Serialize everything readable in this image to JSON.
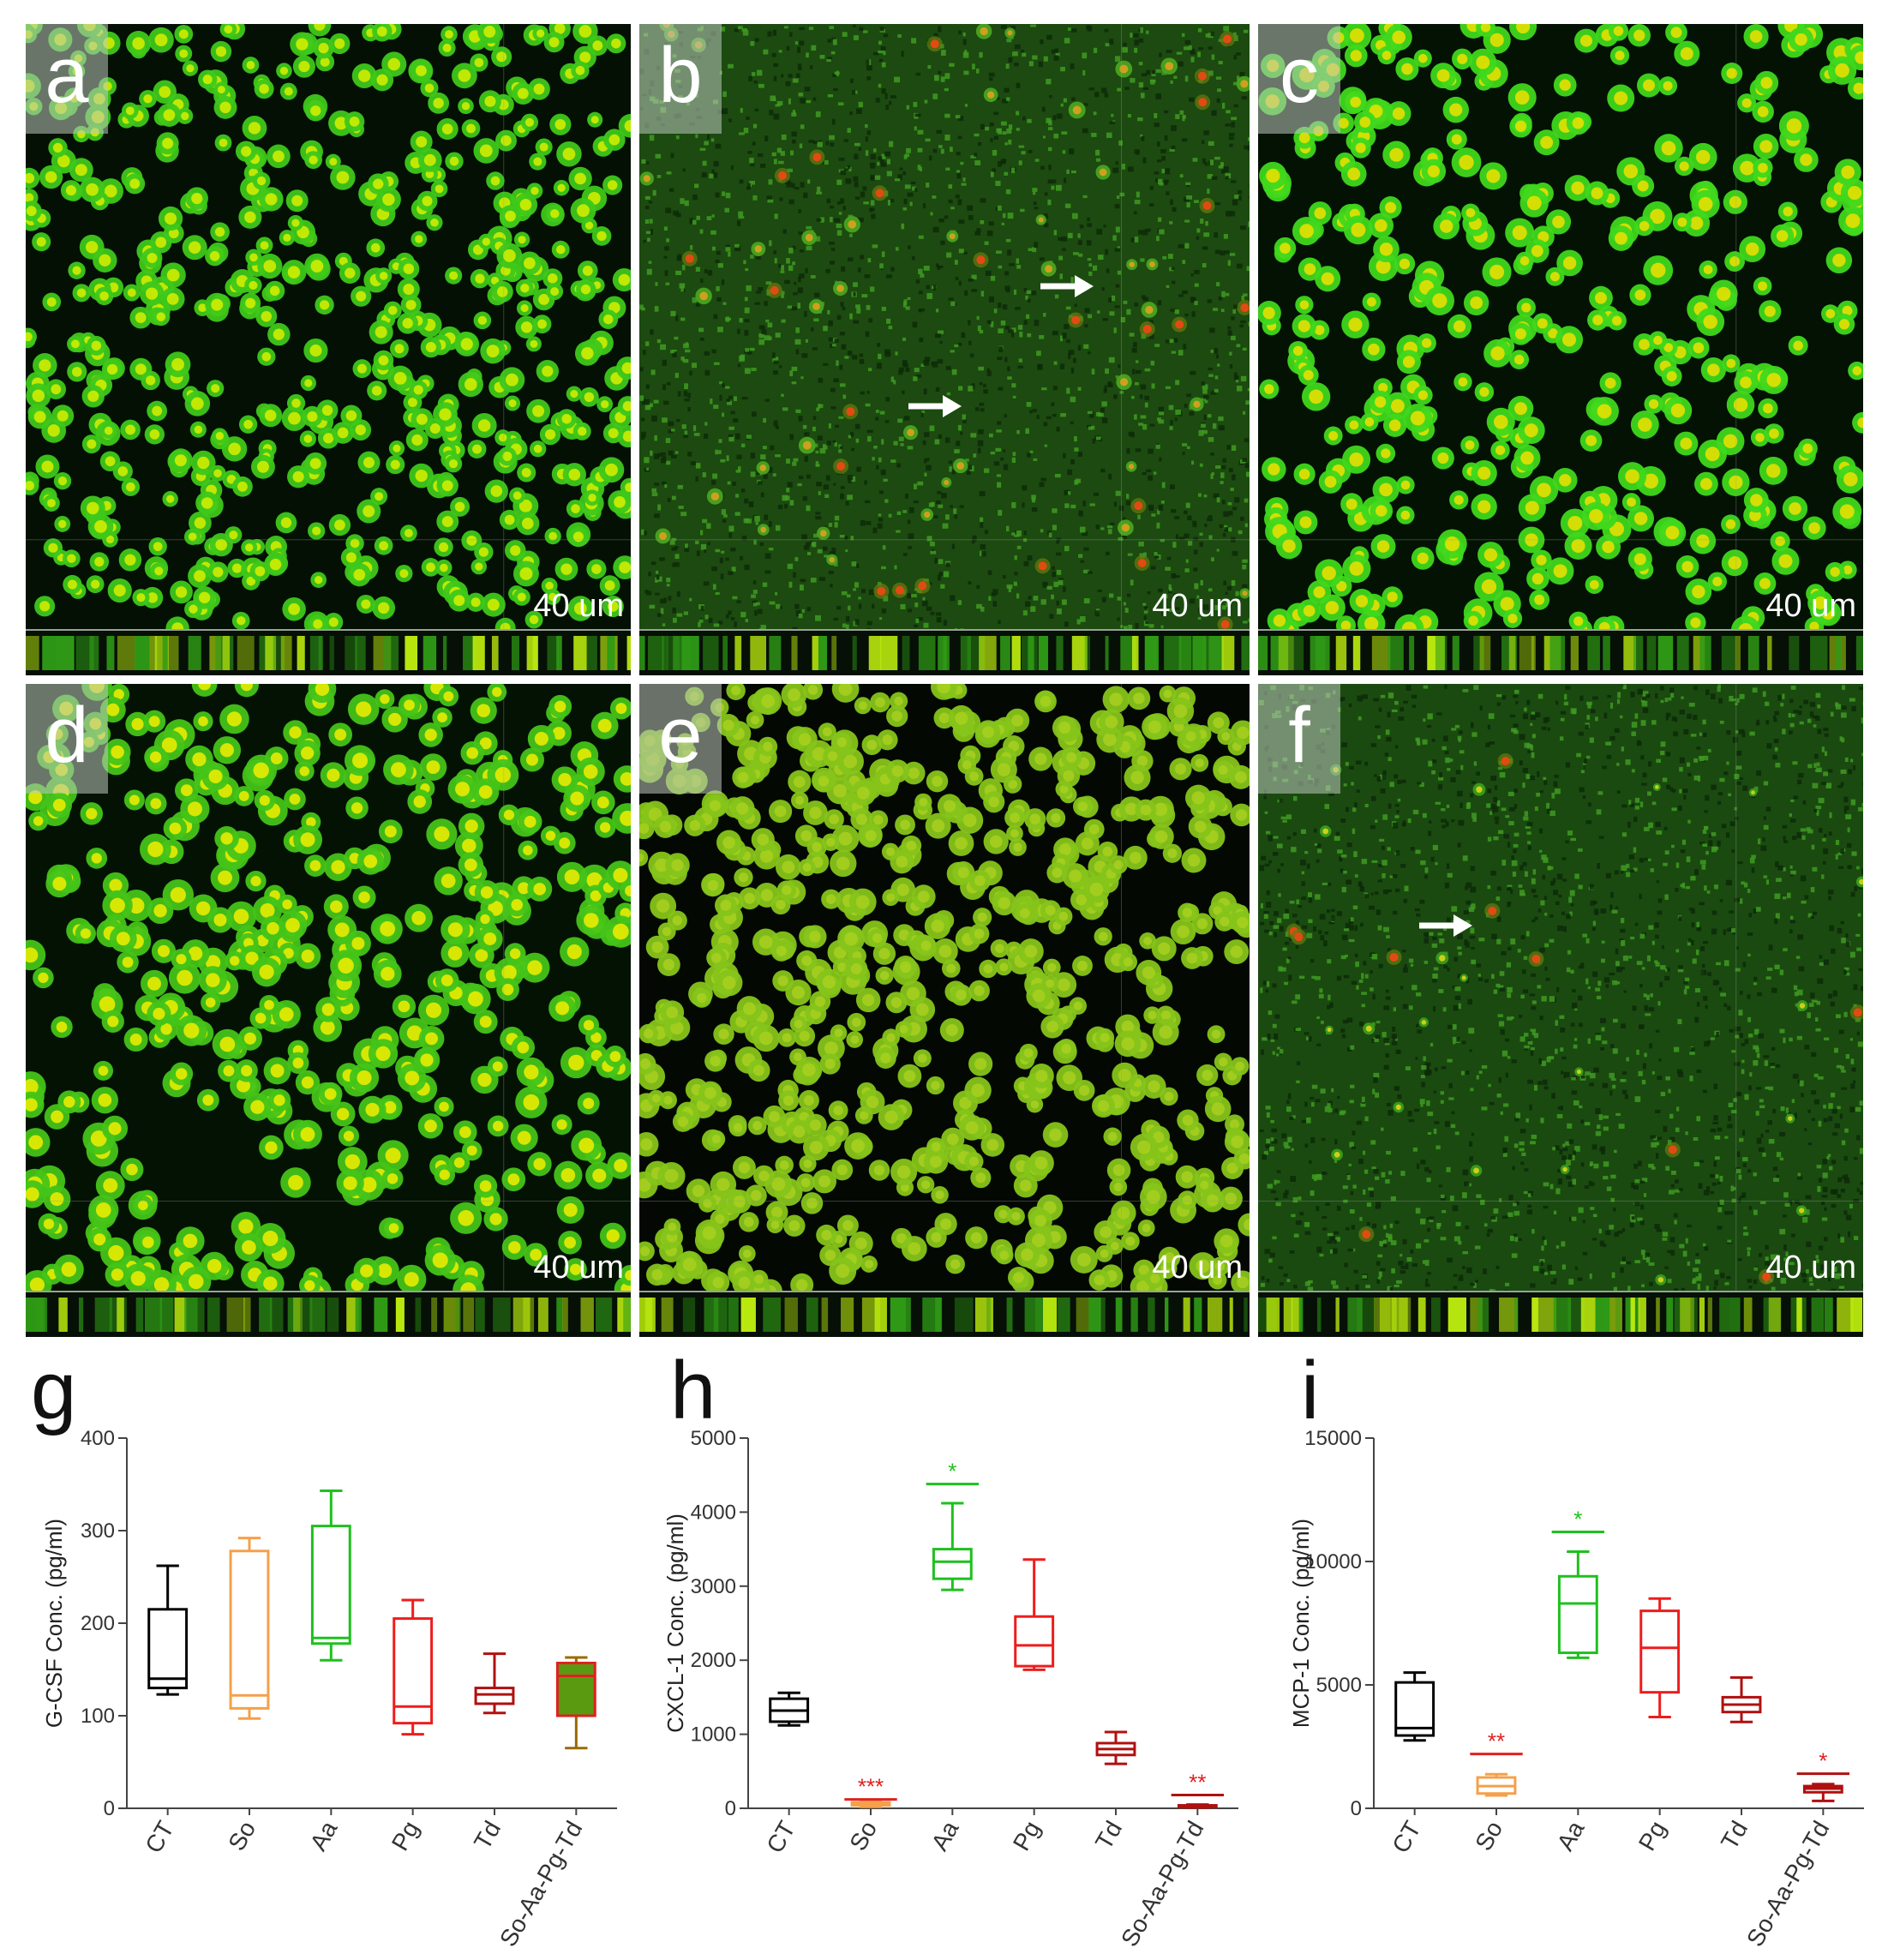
{
  "panels": [
    {
      "letter": "a",
      "scale": "40 um",
      "strip": true,
      "fill": "#3ec81a",
      "density": 560,
      "r": 12,
      "core": "#d9f000",
      "bg": "#031003",
      "red": 0,
      "arrows": 0
    },
    {
      "letter": "b",
      "scale": "40 um",
      "strip": true,
      "fill": "#4aa320",
      "density": 40,
      "r": 8,
      "core": "#e8a020",
      "bg": "#1c4a10",
      "red": 24,
      "arrows": 2
    },
    {
      "letter": "c",
      "scale": "40 um",
      "strip": true,
      "fill": "#3fd81c",
      "density": 380,
      "r": 14,
      "core": "#f0e000",
      "bg": "#031203",
      "red": 0,
      "arrows": 0
    },
    {
      "letter": "d",
      "scale": "40 um",
      "strip": true,
      "fill": "#44c418",
      "density": 420,
      "r": 15,
      "core": "#f2ef00",
      "bg": "#041204",
      "red": 0,
      "arrows": 0
    },
    {
      "letter": "e",
      "scale": "40 um",
      "strip": true,
      "fill": "#86c41a",
      "density": 640,
      "r": 13,
      "core": "#a8d020",
      "bg": "#030803",
      "red": 0,
      "arrows": 0
    },
    {
      "letter": "f",
      "scale": "40 um",
      "strip": true,
      "fill": "#3b9c1c",
      "density": 20,
      "r": 6,
      "core": "#e6d818",
      "bg": "#1a4a10",
      "red": 10,
      "arrows": 1
    }
  ],
  "chart_data": [
    {
      "type": "box",
      "letter": "g",
      "ylabel": "G-CSF Conc. (pg/ml)",
      "ylim": [
        0,
        400
      ],
      "yticks": [
        "0",
        "100",
        "200",
        "300",
        "400"
      ],
      "categories": [
        "CT",
        "So",
        "Aa",
        "Pg",
        "Td",
        "So-Aa-Pg-Td"
      ],
      "colors": [
        "#000000",
        "#f5a04a",
        "#1fc01f",
        "#ee1d1d",
        "#b01010",
        "#9a6a00"
      ],
      "boxes": [
        {
          "min": 123,
          "q1": 130,
          "median": 140,
          "q3": 215,
          "max": 262
        },
        {
          "min": 97,
          "q1": 108,
          "median": 122,
          "q3": 278,
          "max": 292
        },
        {
          "min": 160,
          "q1": 178,
          "median": 184,
          "q3": 305,
          "max": 343
        },
        {
          "min": 80,
          "q1": 92,
          "median": 110,
          "q3": 205,
          "max": 225
        },
        {
          "min": 103,
          "q1": 113,
          "median": 123,
          "q3": 130,
          "max": 167
        },
        {
          "min": 65,
          "q1": 100,
          "median": 143,
          "q3": 157,
          "max": 163
        }
      ],
      "sig": [
        "",
        "",
        "",
        "",
        "",
        ""
      ]
    },
    {
      "type": "box",
      "letter": "h",
      "ylabel": "CXCL-1 Conc. (pg/ml)",
      "ylim": [
        0,
        5000
      ],
      "yticks": [
        "0",
        "1000",
        "2000",
        "3000",
        "4000",
        "5000"
      ],
      "categories": [
        "CT",
        "So",
        "Aa",
        "Pg",
        "Td",
        "So-Aa-Pg-Td"
      ],
      "colors": [
        "#000000",
        "#f5a04a",
        "#1fc01f",
        "#ee1d1d",
        "#b01010",
        "#b01010"
      ],
      "boxes": [
        {
          "min": 1120,
          "q1": 1170,
          "median": 1320,
          "q3": 1480,
          "max": 1560
        },
        {
          "min": 20,
          "q1": 40,
          "median": 60,
          "q3": 80,
          "max": 100
        },
        {
          "min": 2950,
          "q1": 3100,
          "median": 3330,
          "q3": 3500,
          "max": 4120
        },
        {
          "min": 1870,
          "q1": 1920,
          "median": 2200,
          "q3": 2590,
          "max": 3360
        },
        {
          "min": 600,
          "q1": 720,
          "median": 800,
          "q3": 880,
          "max": 1030
        },
        {
          "min": 10,
          "q1": 20,
          "median": 30,
          "q3": 40,
          "max": 50
        }
      ],
      "sig": [
        "",
        "***",
        "*",
        "",
        "",
        "**"
      ],
      "sigy": [
        0,
        120,
        4380,
        0,
        0,
        180
      ]
    },
    {
      "type": "box",
      "letter": "i",
      "ylabel": "MCP-1 Conc. (pg/ml)",
      "ylim": [
        0,
        15000
      ],
      "yticks": [
        "0",
        "5000",
        "10000",
        "15000"
      ],
      "categories": [
        "CT",
        "So",
        "Aa",
        "Pg",
        "Td",
        "So-Aa-Pg-Td"
      ],
      "colors": [
        "#000000",
        "#f5a04a",
        "#1fc01f",
        "#ee1d1d",
        "#b01010",
        "#b01010"
      ],
      "boxes": [
        {
          "min": 2750,
          "q1": 2950,
          "median": 3250,
          "q3": 5100,
          "max": 5500
        },
        {
          "min": 520,
          "q1": 600,
          "median": 900,
          "q3": 1250,
          "max": 1380
        },
        {
          "min": 6100,
          "q1": 6300,
          "median": 8300,
          "q3": 9400,
          "max": 10400
        },
        {
          "min": 3700,
          "q1": 4700,
          "median": 6500,
          "q3": 8000,
          "max": 8500
        },
        {
          "min": 3500,
          "q1": 3900,
          "median": 4200,
          "q3": 4500,
          "max": 5300
        },
        {
          "min": 300,
          "q1": 650,
          "median": 800,
          "q3": 900,
          "max": 980
        }
      ],
      "sig": [
        "",
        "**",
        "*",
        "",
        "",
        "*"
      ],
      "sigy": [
        0,
        2200,
        11200,
        0,
        0,
        1400
      ]
    }
  ]
}
